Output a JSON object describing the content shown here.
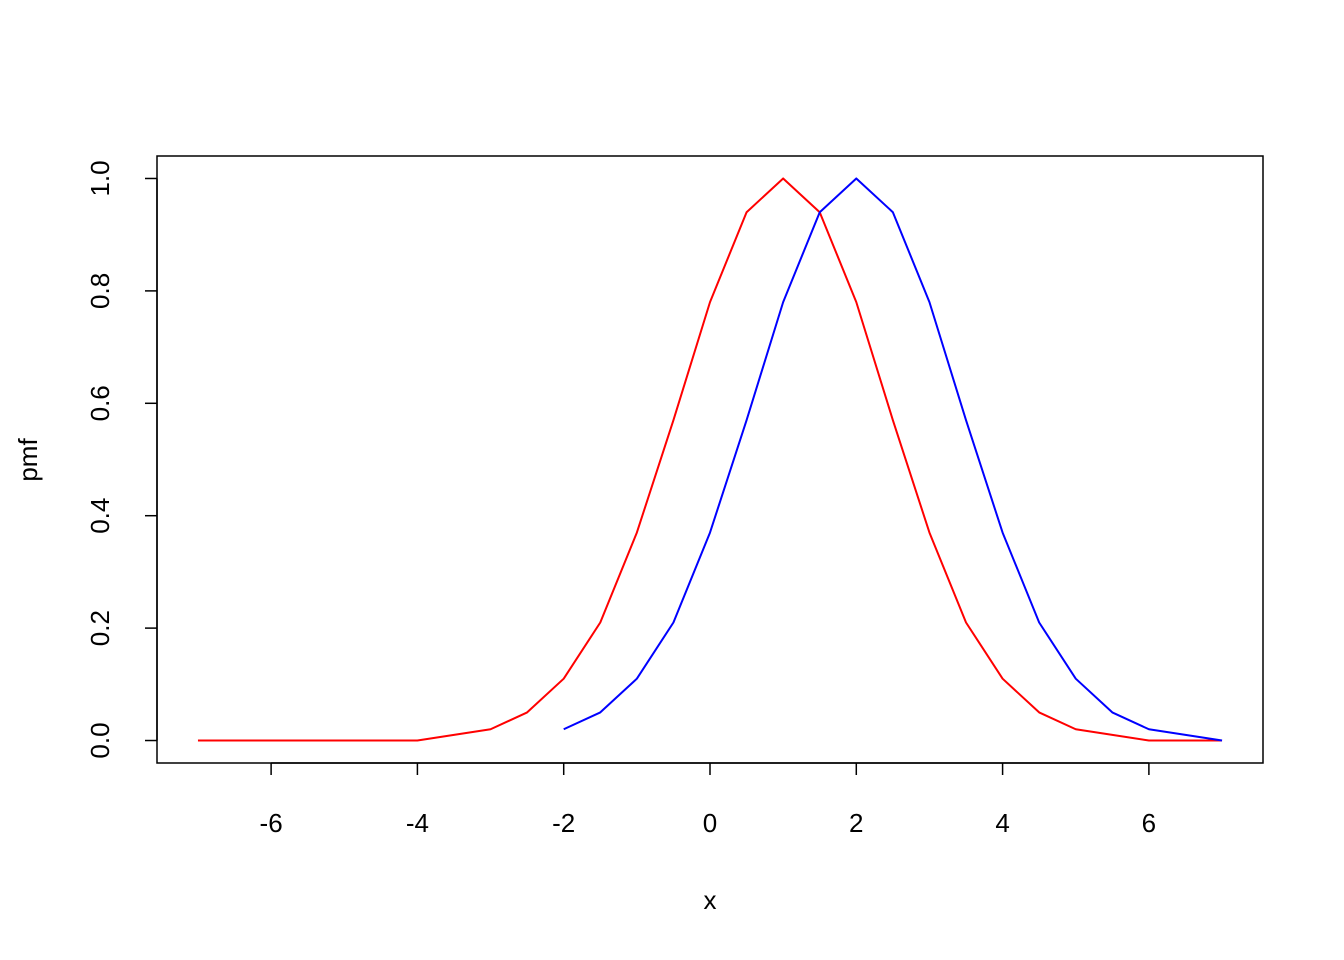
{
  "chart_data": {
    "type": "line",
    "x_label": "x",
    "y_label": "pmf",
    "xlim": [
      -7.56,
      7.56
    ],
    "ylim": [
      -0.04,
      1.04
    ],
    "xticks": [
      -6,
      -4,
      -2,
      0,
      2,
      4,
      6
    ],
    "yticks": [
      {
        "value": 0,
        "label": "0.0"
      },
      0.2,
      0.4,
      0.6,
      0.8,
      {
        "value": 1,
        "label": "1.0"
      }
    ],
    "series": [
      {
        "color": "#ff0000",
        "x": [
          -7,
          -6.5,
          -6,
          -5.5,
          -5,
          -4.5,
          -4,
          -3.5,
          -3,
          -2.5,
          -2,
          -1.5,
          -1,
          -0.5,
          0,
          0.5,
          1,
          1.5,
          2,
          2.5,
          3,
          3.5,
          4,
          4.5,
          5,
          5.5,
          6,
          6.5,
          7
        ],
        "values": [
          0,
          0,
          0,
          0,
          0,
          0,
          0,
          0.01,
          0.02,
          0.05,
          0.11,
          0.21,
          0.37,
          0.57,
          0.78,
          0.94,
          1,
          0.94,
          0.78,
          0.57,
          0.37,
          0.21,
          0.11,
          0.05,
          0.02,
          0.01,
          0,
          0,
          0
        ]
      },
      {
        "color": "#0000ff",
        "x": [
          -2,
          -1.5,
          -1,
          -0.5,
          0,
          0.5,
          1,
          1.5,
          2,
          2.5,
          3,
          3.5,
          4,
          4.5,
          5,
          5.5,
          6,
          6.5,
          7
        ],
        "values": [
          0.02,
          0.05,
          0.11,
          0.21,
          0.37,
          0.57,
          0.78,
          0.94,
          1,
          0.94,
          0.78,
          0.57,
          0.37,
          0.21,
          0.11,
          0.05,
          0.02,
          0.01,
          0
        ]
      }
    ]
  }
}
